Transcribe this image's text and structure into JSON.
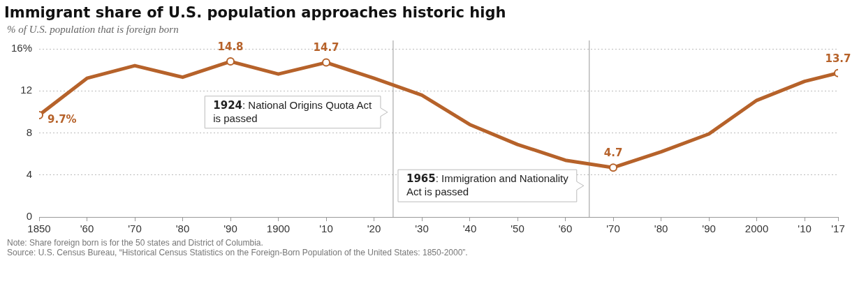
{
  "chart_data": {
    "type": "line",
    "title": "Immigrant share of U.S. population approaches historic high",
    "subtitle": "% of U.S. population that is foreign born",
    "x": [
      1850,
      1860,
      1870,
      1880,
      1890,
      1900,
      1910,
      1920,
      1930,
      1940,
      1950,
      1960,
      1970,
      1980,
      1990,
      2000,
      2010,
      2017
    ],
    "series": [
      {
        "color": "#b6622a",
        "values": [
          9.7,
          13.2,
          14.4,
          13.3,
          14.8,
          13.6,
          14.7,
          13.2,
          11.6,
          8.8,
          6.9,
          5.4,
          4.7,
          6.2,
          7.9,
          11.1,
          12.9,
          13.7
        ],
        "value_labels": [
          "9.7%",
          null,
          null,
          null,
          "14.8",
          null,
          "14.7",
          null,
          null,
          null,
          null,
          null,
          "4.7",
          null,
          null,
          null,
          null,
          "13.7"
        ]
      }
    ],
    "xlim": [
      1850,
      2017
    ],
    "xticks": [
      {
        "value": 1850,
        "label": "1850"
      },
      {
        "value": 1860,
        "label": "'60"
      },
      {
        "value": 1870,
        "label": "'70"
      },
      {
        "value": 1880,
        "label": "'80"
      },
      {
        "value": 1890,
        "label": "'90"
      },
      {
        "value": 1900,
        "label": "1900"
      },
      {
        "value": 1910,
        "label": "'10"
      },
      {
        "value": 1920,
        "label": "'20"
      },
      {
        "value": 1930,
        "label": "'30"
      },
      {
        "value": 1940,
        "label": "'40"
      },
      {
        "value": 1950,
        "label": "'50"
      },
      {
        "value": 1960,
        "label": "'60"
      },
      {
        "value": 1970,
        "label": "'70"
      },
      {
        "value": 1980,
        "label": "'80"
      },
      {
        "value": 1990,
        "label": "'90"
      },
      {
        "value": 2000,
        "label": "2000"
      },
      {
        "value": 2010,
        "label": "'10"
      },
      {
        "value": 2017,
        "label": "'17"
      }
    ],
    "ylim": [
      0,
      16
    ],
    "yticks": [
      0,
      4,
      8,
      12,
      {
        "value": 16,
        "label": "16%"
      }
    ],
    "grid": "y",
    "legend": false,
    "line_style": "solid",
    "ref_lines": [
      {
        "axis": "x",
        "value": 1924,
        "label": "1924: National Origins Quota Act is passed",
        "color": "#999999"
      },
      {
        "axis": "x",
        "value": 1965,
        "label": "1965: Immigration and Nationality Act is passed",
        "color": "#999999"
      }
    ],
    "annotations": [
      "Note: Share foreign born is for the 50 states and District of Columbia.",
      "Source: U.S. Census Bureau, “Historical Census Statistics on the Foreign-Born Population of the United States: 1850-2000”."
    ]
  }
}
